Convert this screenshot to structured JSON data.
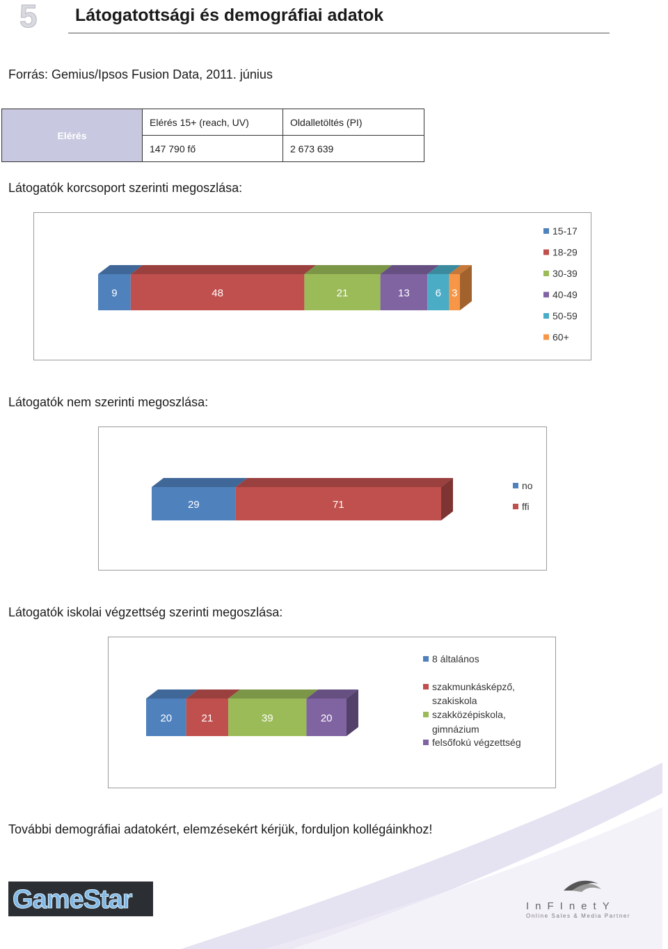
{
  "header": {
    "section_number": "5",
    "title": "Látogatottsági és demográfiai adatok"
  },
  "source": "Forrás: Gemius/Ipsos Fusion Data, 2011. június",
  "reach_table": {
    "row_label": "Elérés",
    "col1_header": "Elérés 15+  (reach, UV)",
    "col2_header": "Oldalletöltés (PI)",
    "col1_value": "147 790 fő",
    "col2_value": "2 673 639"
  },
  "age_heading": "Látogatók korcsoport szerinti megoszlása:",
  "gender_heading": "Látogatók nem szerinti megoszlása:",
  "education_heading": "Látogatók iskolai végzettség szerinti megoszlása:",
  "footer_text": "További demográfiai adatokért, elemzésekért kérjük,  forduljon kollégáinkhoz!",
  "logos": {
    "left": "GameStar",
    "right": "InFInetY",
    "right_tagline": "Online Sales & Media Partner"
  },
  "chart_data": [
    {
      "type": "bar",
      "stacked": true,
      "orientation": "horizontal",
      "legend_position": "right",
      "series": [
        {
          "name": "15-17",
          "values": [
            9
          ],
          "color": "#4f81bd"
        },
        {
          "name": "18-29",
          "values": [
            48
          ],
          "color": "#c0504d"
        },
        {
          "name": "30-39",
          "values": [
            21
          ],
          "color": "#9bbb59"
        },
        {
          "name": "40-49",
          "values": [
            13
          ],
          "color": "#8064a2"
        },
        {
          "name": "50-59",
          "values": [
            6
          ],
          "color": "#4bacc6"
        },
        {
          "name": "60+",
          "values": [
            3
          ],
          "color": "#f79646"
        }
      ]
    },
    {
      "type": "bar",
      "stacked": true,
      "orientation": "horizontal",
      "legend_position": "right",
      "series": [
        {
          "name": "no",
          "values": [
            29
          ],
          "color": "#4f81bd"
        },
        {
          "name": "ffi",
          "values": [
            71
          ],
          "color": "#c0504d"
        }
      ]
    },
    {
      "type": "bar",
      "stacked": true,
      "orientation": "horizontal",
      "legend_position": "right",
      "series": [
        {
          "name": "8 általános",
          "values": [
            20
          ],
          "color": "#4f81bd"
        },
        {
          "name": "szakmunkásképző, szakiskola",
          "values": [
            21
          ],
          "color": "#c0504d"
        },
        {
          "name": "szakközépiskola, gimnázium",
          "values": [
            39
          ],
          "color": "#9bbb59"
        },
        {
          "name": "felsőfokú végzettség",
          "values": [
            20
          ],
          "color": "#8064a2"
        }
      ]
    }
  ]
}
